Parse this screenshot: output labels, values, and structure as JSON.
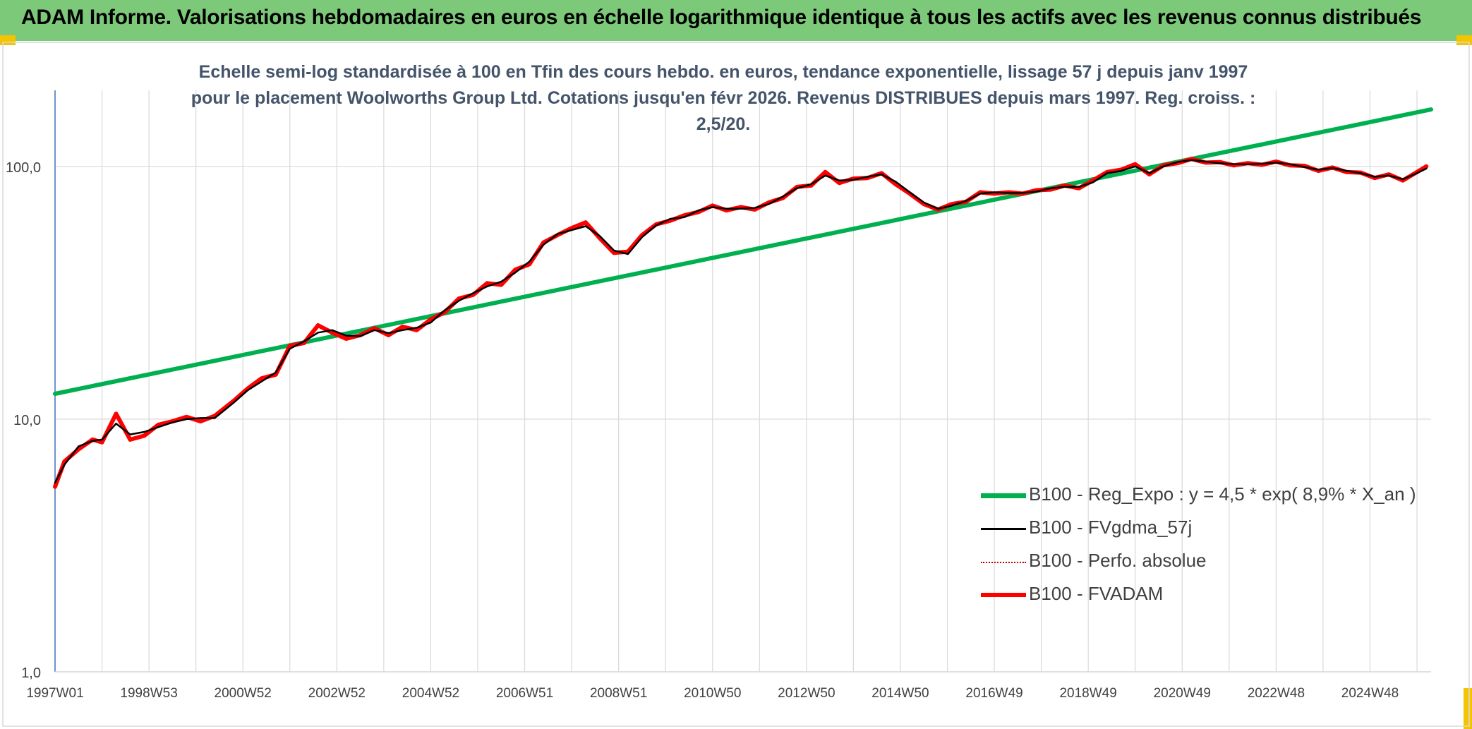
{
  "header": {
    "title": "ADAM Informe. Valorisations hebdomadaires en euros en échelle logarithmique identique à tous les actifs avec les revenus connus distribués",
    "bar_color": "#7dc97a"
  },
  "chart_data": {
    "type": "line",
    "title": "Echelle semi-log standardisée à 100 en Tfin des cours hebdo. en euros, tendance exponentielle, lissage 57 j depuis janv 1997 pour le placement Woolworths Group Ltd. Cotations jusqu'en févr 2026. Revenus DISTRIBUES depuis mars 1997. Reg. croiss. : 2,5/20.",
    "y_scale": "log",
    "ylim": [
      1,
      200
    ],
    "y_ticks": [
      "1,0",
      "10,0",
      "100,0"
    ],
    "x_tick_labels": [
      "1997W01",
      "1998W53",
      "2000W52",
      "2002W52",
      "2004W52",
      "2006W51",
      "2008W51",
      "2010W50",
      "2012W50",
      "2014W50",
      "2016W49",
      "2018W49",
      "2020W49",
      "2022W48",
      "2024W48"
    ],
    "x_range_years": [
      1997.0,
      2026.3
    ],
    "grid": true,
    "legend_position": "bottom-right",
    "series": [
      {
        "name": "B100 - Reg_Expo : y = 4,5 * exp( 8,9% *  X_an )",
        "color": "#00b050",
        "style": "solid-thick",
        "x": [
          1997.0,
          2026.3
        ],
        "y": [
          12.6,
          168
        ]
      },
      {
        "name": "B100 - FVgdma_57j",
        "color": "#000000",
        "style": "solid-thin",
        "x": [
          1997.0,
          1997.2,
          1997.5,
          1997.8,
          1998.0,
          1998.3,
          1998.6,
          1998.9,
          1999.2,
          1999.5,
          1999.8,
          2000.1,
          2000.4,
          2000.8,
          2001.1,
          2001.4,
          2001.7,
          2002.0,
          2002.3,
          2002.6,
          2002.9,
          2003.2,
          2003.5,
          2003.8,
          2004.1,
          2004.4,
          2004.7,
          2005.0,
          2005.3,
          2005.6,
          2005.9,
          2006.2,
          2006.5,
          2006.8,
          2007.1,
          2007.4,
          2007.7,
          2008.0,
          2008.3,
          2008.6,
          2008.9,
          2009.2,
          2009.5,
          2009.8,
          2010.1,
          2010.4,
          2010.7,
          2011.0,
          2011.3,
          2011.6,
          2011.9,
          2012.2,
          2012.5,
          2012.8,
          2013.1,
          2013.4,
          2013.7,
          2014.0,
          2014.3,
          2014.6,
          2014.9,
          2015.2,
          2015.5,
          2015.8,
          2016.1,
          2016.4,
          2016.7,
          2017.0,
          2017.3,
          2017.6,
          2017.9,
          2018.2,
          2018.5,
          2018.8,
          2019.1,
          2019.4,
          2019.7,
          2020.0,
          2020.3,
          2020.6,
          2020.9,
          2021.2,
          2021.5,
          2021.8,
          2022.1,
          2022.4,
          2022.7,
          2023.0,
          2023.3,
          2023.6,
          2023.9,
          2024.2,
          2024.5,
          2024.8,
          2025.1,
          2025.4,
          2025.7,
          2026.0,
          2026.2
        ],
        "y": [
          5.6,
          6.6,
          7.8,
          8.2,
          8.3,
          9.6,
          8.7,
          8.9,
          9.3,
          9.7,
          10.0,
          10.1,
          10.1,
          11.6,
          13.0,
          14.1,
          15.3,
          19.0,
          20.3,
          22.0,
          22.5,
          21.4,
          21.3,
          22.5,
          21.9,
          22.5,
          23.0,
          24.1,
          27.0,
          29.4,
          31.5,
          33.5,
          35.0,
          38.0,
          42.0,
          49.0,
          54.0,
          56.0,
          58.0,
          53.0,
          46.5,
          45.0,
          52.5,
          58.5,
          62.0,
          63.0,
          67.0,
          69.0,
          68.0,
          68.0,
          68.5,
          71.0,
          76.0,
          82.0,
          85.0,
          92.0,
          88.0,
          88.5,
          91.0,
          93.0,
          87.0,
          79.0,
          72.0,
          68.0,
          70.0,
          73.0,
          78.0,
          79.0,
          78.5,
          78.5,
          79.5,
          82.0,
          83.0,
          83.0,
          86.5,
          94.0,
          96.0,
          100.0,
          94.0,
          100.0,
          104.0,
          106.0,
          104.5,
          103.0,
          102.0,
          102.0,
          102.5,
          103.5,
          102.0,
          99.5,
          97.0,
          98.5,
          96.0,
          94.0,
          91.0,
          92.0,
          89.0,
          94.0,
          98.0
        ]
      },
      {
        "name": "B100 - Perfo. absolue",
        "color": "#c00000",
        "style": "dotted"
      },
      {
        "name": "B100 - FVADAM",
        "color": "#ff0000",
        "style": "solid-thick",
        "x": [
          1997.0,
          1997.2,
          1997.5,
          1997.8,
          1998.0,
          1998.3,
          1998.6,
          1998.9,
          1999.2,
          1999.5,
          1999.8,
          2000.1,
          2000.4,
          2000.8,
          2001.1,
          2001.4,
          2001.7,
          2002.0,
          2002.3,
          2002.6,
          2002.9,
          2003.2,
          2003.5,
          2003.8,
          2004.1,
          2004.4,
          2004.7,
          2005.0,
          2005.3,
          2005.6,
          2005.9,
          2006.2,
          2006.5,
          2006.8,
          2007.1,
          2007.4,
          2007.7,
          2008.0,
          2008.3,
          2008.6,
          2008.9,
          2009.2,
          2009.5,
          2009.8,
          2010.1,
          2010.4,
          2010.7,
          2011.0,
          2011.3,
          2011.6,
          2011.9,
          2012.2,
          2012.5,
          2012.8,
          2013.1,
          2013.4,
          2013.7,
          2014.0,
          2014.3,
          2014.6,
          2014.9,
          2015.2,
          2015.5,
          2015.8,
          2016.1,
          2016.4,
          2016.7,
          2017.0,
          2017.3,
          2017.6,
          2017.9,
          2018.2,
          2018.5,
          2018.8,
          2019.1,
          2019.4,
          2019.7,
          2020.0,
          2020.3,
          2020.6,
          2020.9,
          2021.2,
          2021.5,
          2021.8,
          2022.1,
          2022.4,
          2022.7,
          2023.0,
          2023.3,
          2023.6,
          2023.9,
          2024.2,
          2024.5,
          2024.8,
          2025.1,
          2025.4,
          2025.7,
          2026.0,
          2026.2
        ],
        "y": [
          5.4,
          6.8,
          7.6,
          8.3,
          8.1,
          10.5,
          8.3,
          8.6,
          9.5,
          9.8,
          10.2,
          9.8,
          10.3,
          11.8,
          13.2,
          14.5,
          15.0,
          19.5,
          20.0,
          23.5,
          22.0,
          20.8,
          21.5,
          22.9,
          21.5,
          23.2,
          22.5,
          24.8,
          26.5,
          30.0,
          31.0,
          34.5,
          34.0,
          39.0,
          41.0,
          50.0,
          53.5,
          57.0,
          60.0,
          52.0,
          45.5,
          46.0,
          53.5,
          59.0,
          61.0,
          64.0,
          66.0,
          70.0,
          67.0,
          69.0,
          67.5,
          72.0,
          75.0,
          83.0,
          84.0,
          95.0,
          86.0,
          89.5,
          90.0,
          94.0,
          85.0,
          78.0,
          71.0,
          67.5,
          71.0,
          72.5,
          79.0,
          78.0,
          79.0,
          78.0,
          80.5,
          81.0,
          84.0,
          82.0,
          88.0,
          95.0,
          97.0,
          102.0,
          93.0,
          101.0,
          103.0,
          107.0,
          103.5,
          104.0,
          101.0,
          103.0,
          101.5,
          104.5,
          101.0,
          100.5,
          96.0,
          99.0,
          95.0,
          94.5,
          90.0,
          93.0,
          88.0,
          95.0,
          100.0
        ]
      }
    ]
  }
}
